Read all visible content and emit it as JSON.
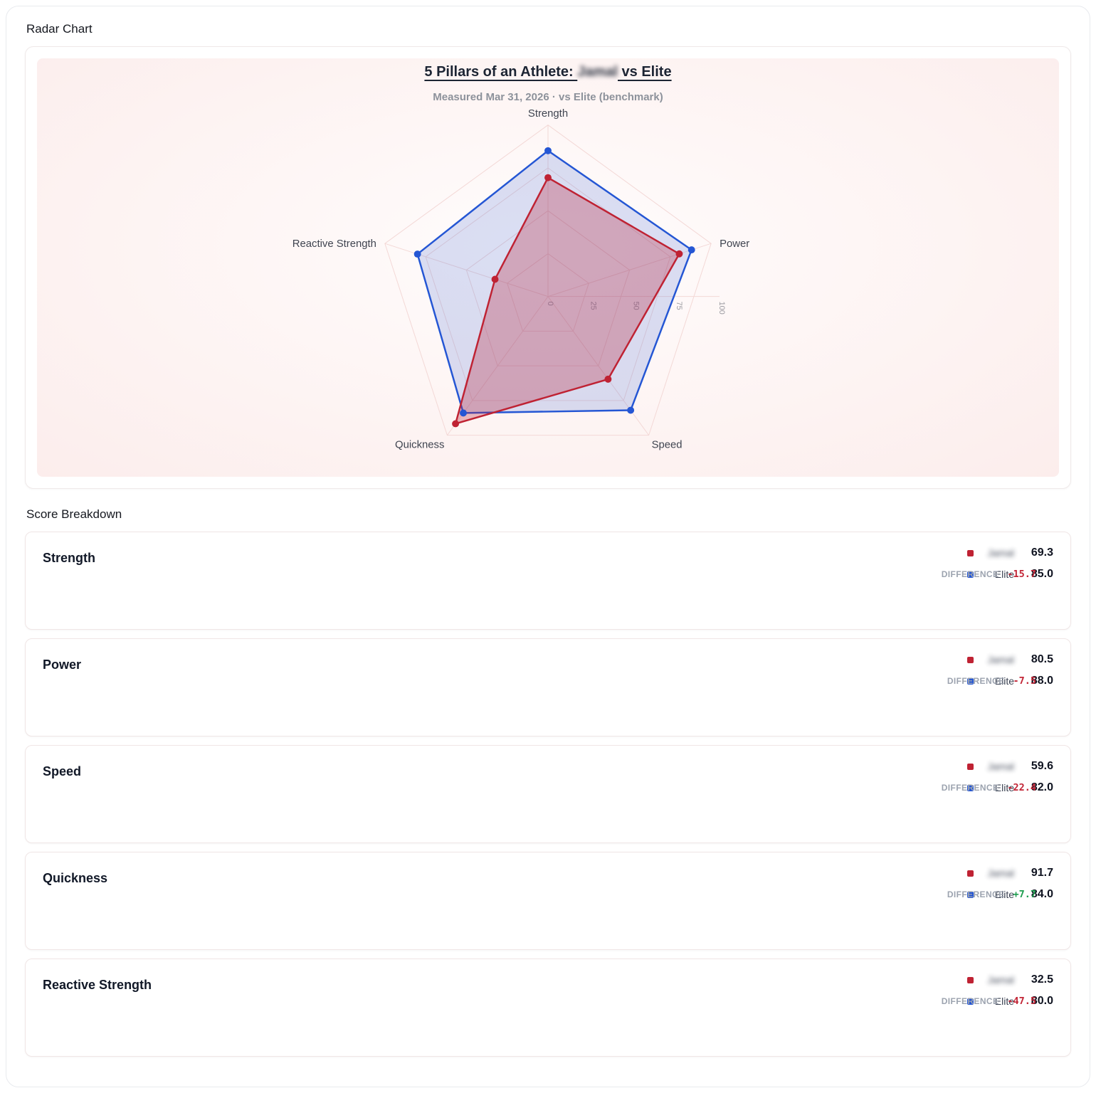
{
  "page": {
    "radar_section_title": "Radar Chart",
    "breakdown_section_title": "Score Breakdown"
  },
  "chart_data": {
    "type": "radar",
    "title_prefix": "5 Pillars of an Athlete: ",
    "athlete_name": "Jamal",
    "athlete_name_redacted": true,
    "title_suffix": " vs Elite",
    "subtitle": "Measured Mar 31, 2026 · vs Elite (benchmark)",
    "axes": [
      "Strength",
      "Power",
      "Speed",
      "Quickness",
      "Reactive Strength"
    ],
    "ticks": [
      0,
      25,
      50,
      75,
      100
    ],
    "rmin": 0,
    "rmax": 100,
    "grid": "pentagon-web",
    "series": [
      {
        "name": "Jamal",
        "color": "#bf2233",
        "fill": "rgba(186,38,58,0.30)",
        "values": [
          69.3,
          80.5,
          59.6,
          91.7,
          32.5
        ]
      },
      {
        "name": "Elite",
        "color": "#2456d4",
        "fill": "rgba(86,118,216,0.22)",
        "values": [
          85.0,
          88.0,
          82.0,
          84.0,
          80.0
        ]
      }
    ]
  },
  "breakdown": {
    "elite_label": "Elite",
    "difference_label": "DIFFERENCE",
    "items": [
      {
        "category": "Strength",
        "athlete": "69.3",
        "elite": "85.0",
        "diff": "-15.7",
        "positive": false
      },
      {
        "category": "Power",
        "athlete": "80.5",
        "elite": "88.0",
        "diff": "-7.5",
        "positive": false
      },
      {
        "category": "Speed",
        "athlete": "59.6",
        "elite": "82.0",
        "diff": "-22.4",
        "positive": false
      },
      {
        "category": "Quickness",
        "athlete": "91.7",
        "elite": "84.0",
        "diff": "+7.7",
        "positive": true
      },
      {
        "category": "Reactive Strength",
        "athlete": "32.5",
        "elite": "80.0",
        "diff": "-47.5",
        "positive": false
      }
    ]
  }
}
